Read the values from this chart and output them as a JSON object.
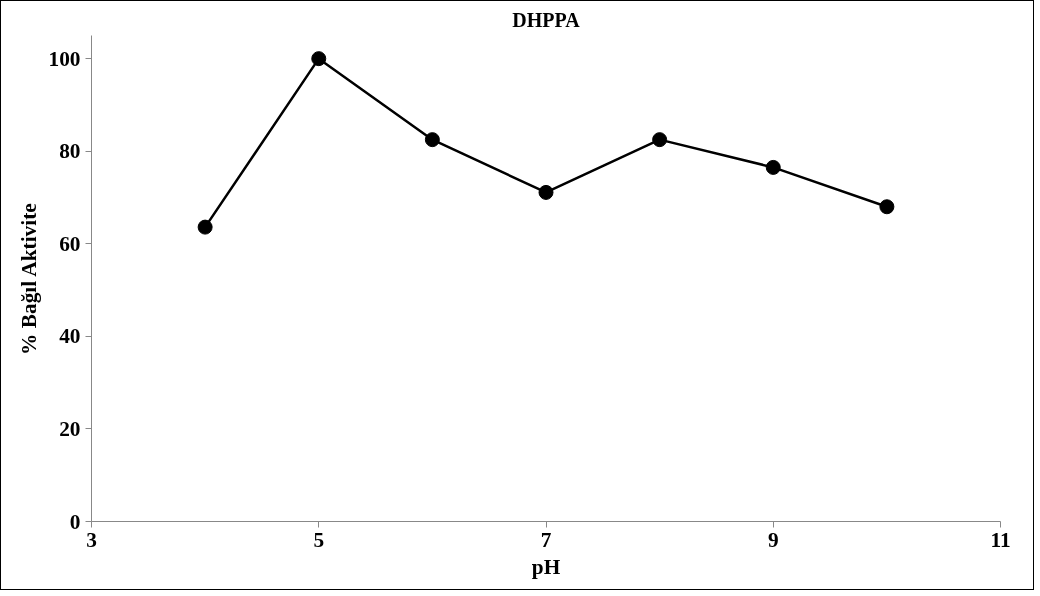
{
  "chart_data": {
    "type": "line",
    "title": "DHPPA",
    "xlabel": "pH",
    "ylabel": "% Bağıl Aktivite",
    "x": [
      4,
      5,
      6,
      7,
      8,
      9,
      10
    ],
    "series": [
      {
        "color": "#000000",
        "values": [
          63.6,
          100,
          82.5,
          71.1,
          82.5,
          76.5,
          68.0
        ]
      }
    ],
    "xlim": [
      3,
      11
    ],
    "xticks": [
      3,
      5,
      7,
      9,
      11
    ],
    "ylim": [
      0,
      105
    ],
    "yticks": [
      0,
      20,
      40,
      60,
      80,
      100
    ],
    "marker": "circle",
    "line_style": "solid",
    "grid": false
  }
}
